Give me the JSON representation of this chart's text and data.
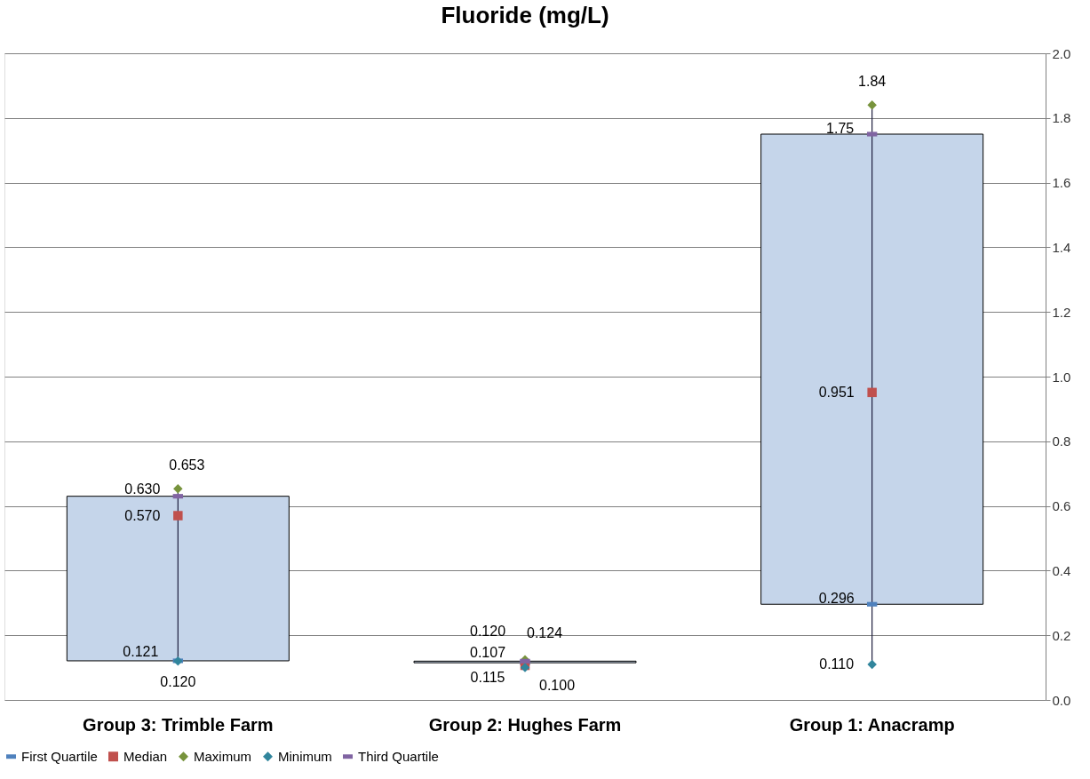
{
  "chart_data": {
    "type": "box",
    "title": "Fluoride (mg/L)",
    "categories": [
      "Group 3: Trimble Farm",
      "Group 2: Hughes Farm",
      "Group 1: Anacramp"
    ],
    "color": "#c5d5ea",
    "boxes": [
      {
        "low": 0.12,
        "q1": 0.121,
        "q3": 0.63,
        "high": 0.653
      },
      {
        "low": 0.1,
        "q1": 0.115,
        "q3": 0.12,
        "high": 0.124
      },
      {
        "low": 0.11,
        "q1": 0.296,
        "q3": 1.75,
        "high": 1.84
      }
    ],
    "series": [
      {
        "name": "First Quartile",
        "type": "scatter",
        "color": "#4f81bd",
        "values": [
          0.121,
          0.115,
          0.296
        ],
        "value_labels": [
          "0.121",
          "0.115",
          "0.296"
        ]
      },
      {
        "name": "Median",
        "type": "scatter",
        "color": "#c0504d",
        "marker": "square",
        "values": [
          0.57,
          0.107,
          0.951
        ],
        "value_labels": [
          "0.570",
          "0.107",
          "0.951"
        ]
      },
      {
        "name": "Maximum",
        "type": "scatter",
        "color": "#77933c",
        "marker": "diamond",
        "values": [
          0.653,
          0.124,
          1.84
        ],
        "value_labels": [
          "0.653",
          "0.124",
          "1.84"
        ]
      },
      {
        "name": "Minimum",
        "type": "scatter",
        "color": "#31859c",
        "marker": "diamond",
        "values": [
          0.12,
          0.1,
          0.11
        ],
        "value_labels": [
          "0.120",
          "0.100",
          "0.110"
        ]
      },
      {
        "name": "Third Quartile",
        "type": "scatter",
        "color": "#8064a2",
        "values": [
          0.63,
          0.12,
          1.75
        ],
        "value_labels": [
          "0.630",
          "0.120",
          "1.75"
        ]
      }
    ],
    "ylim": [
      0,
      2
    ],
    "yticks": [
      {
        "value": 0,
        "label": "0.0"
      },
      {
        "value": 0.2,
        "label": "0.2"
      },
      {
        "value": 0.4,
        "label": "0.4"
      },
      {
        "value": 0.6,
        "label": "0.6"
      },
      {
        "value": 0.8,
        "label": "0.8"
      },
      {
        "value": 1,
        "label": "1.0"
      },
      {
        "value": 1.2,
        "label": "1.2"
      },
      {
        "value": 1.4,
        "label": "1.4"
      },
      {
        "value": 1.6,
        "label": "1.6"
      },
      {
        "value": 1.8,
        "label": "1.8"
      },
      {
        "value": 2,
        "label": "2.0"
      }
    ],
    "grid": "y",
    "legend": "bottom"
  }
}
